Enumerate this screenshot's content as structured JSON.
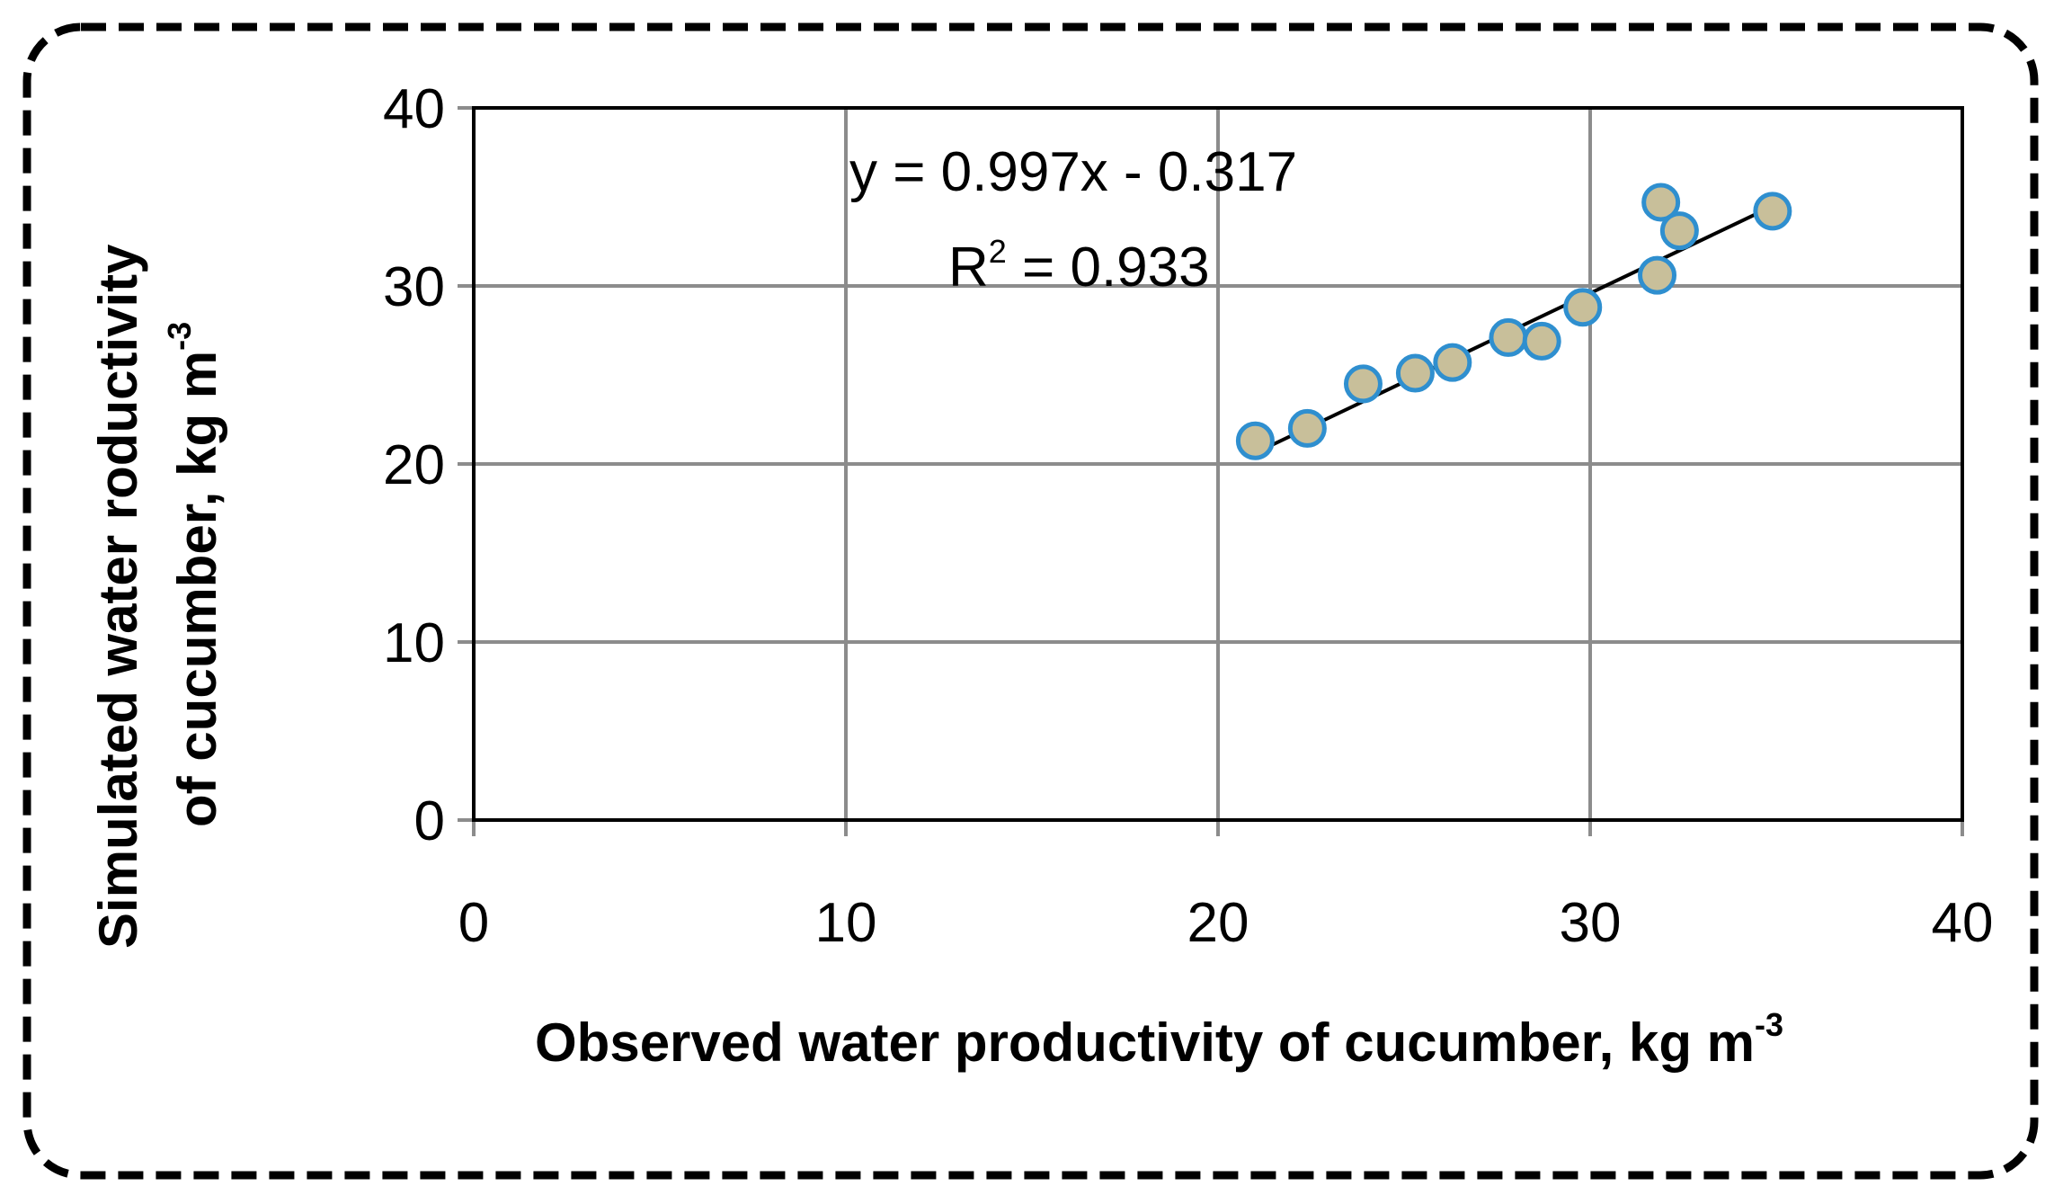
{
  "chart_data": {
    "type": "scatter",
    "xlabel": "Observed water  productivity of cucumber, kg m",
    "xlabel_sup": "-3",
    "ylabel_line1": "Simulated water roductivity",
    "ylabel_line2": "of cucumber, kg m",
    "ylabel_sup": "-3",
    "xlim": [
      0,
      40
    ],
    "ylim": [
      0,
      40
    ],
    "x_ticks": [
      0,
      10,
      20,
      30,
      40
    ],
    "y_ticks": [
      0,
      10,
      20,
      30,
      40
    ],
    "x_tick_labels": [
      "0",
      "10",
      "20",
      "30",
      "40"
    ],
    "y_tick_labels": [
      "0",
      "10",
      "20",
      "30",
      "40"
    ],
    "grid": true,
    "marker_fill": "#c8bf9a",
    "marker_edge": "#2f8fcf",
    "line_color": "#000000",
    "grid_color": "#8c8c8c",
    "frame_border": "dashed",
    "points": [
      {
        "x": 21.0,
        "y": 21.3
      },
      {
        "x": 22.4,
        "y": 22.0
      },
      {
        "x": 23.9,
        "y": 24.5
      },
      {
        "x": 25.3,
        "y": 25.1
      },
      {
        "x": 26.3,
        "y": 25.7
      },
      {
        "x": 27.8,
        "y": 27.1
      },
      {
        "x": 28.7,
        "y": 26.9
      },
      {
        "x": 29.8,
        "y": 28.8
      },
      {
        "x": 31.8,
        "y": 30.6
      },
      {
        "x": 31.9,
        "y": 34.7
      },
      {
        "x": 32.4,
        "y": 33.1
      },
      {
        "x": 34.9,
        "y": 34.2
      }
    ],
    "trendline": {
      "slope": 0.997,
      "intercept": -0.317,
      "x_start": 21.0,
      "x_end": 34.9,
      "equation": "y = 0.997x - 0.317",
      "r2_prefix": "R",
      "r2_sup": "2",
      "r2_value": " = 0.933"
    }
  }
}
